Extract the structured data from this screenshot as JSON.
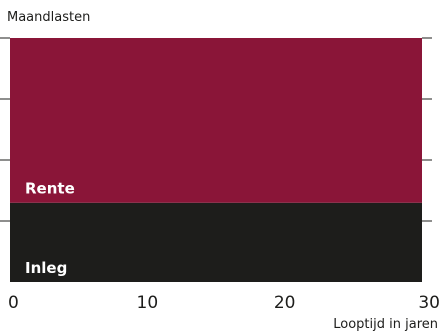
{
  "chart_data": {
    "type": "area",
    "title": "",
    "ylabel": "Maandlasten",
    "xlabel": "Looptijd in jaren",
    "xlim": [
      0,
      30
    ],
    "x_ticks": [
      0,
      10,
      20,
      30
    ],
    "x_tick_labels": [
      "0",
      "10",
      "20",
      "30"
    ],
    "ylim": [
      0,
      4
    ],
    "y_ticks": [
      1,
      2,
      3,
      4
    ],
    "grid": false,
    "stacked": true,
    "x": [
      0,
      30
    ],
    "series": [
      {
        "name": "Inleg",
        "values": [
          1.3,
          1.3
        ],
        "color": "#1d1d1b",
        "label_color": "#ffffff"
      },
      {
        "name": "Rente",
        "values": [
          2.7,
          2.7
        ],
        "color": "#8a1538",
        "label_color": "#ffffff"
      }
    ]
  }
}
